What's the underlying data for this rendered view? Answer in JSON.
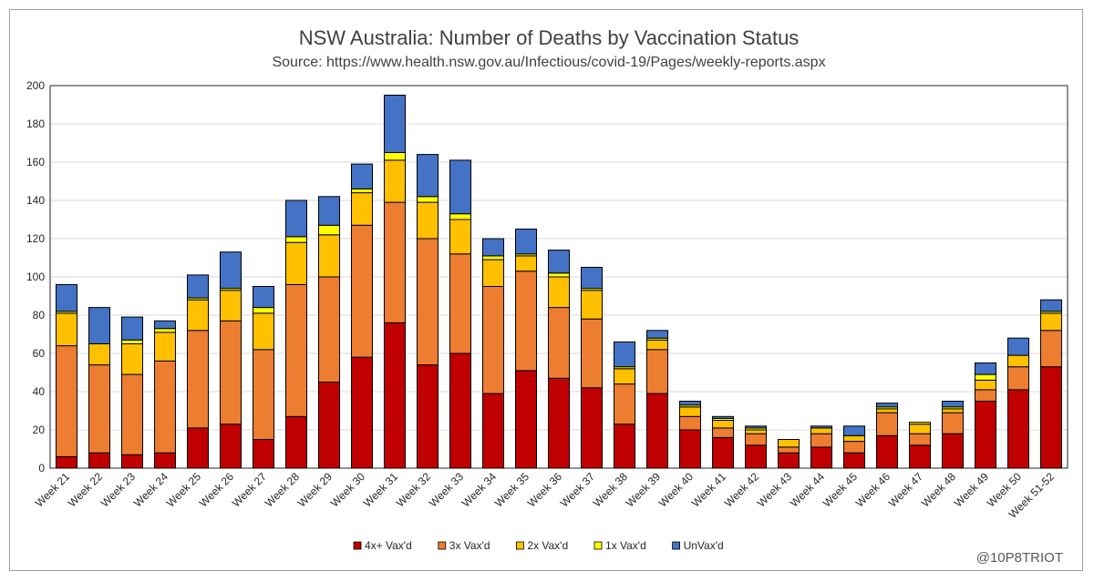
{
  "chart_data": {
    "type": "bar",
    "stacked": true,
    "title": "NSW Australia: Number of Deaths by Vaccination Status",
    "subtitle": "Source: https://www.health.nsw.gov.au/Infectious/covid-19/Pages/weekly-reports.aspx",
    "xlabel": "",
    "ylabel": "",
    "ylim": [
      0,
      200
    ],
    "yticks": [
      0,
      20,
      40,
      60,
      80,
      100,
      120,
      140,
      160,
      180,
      200
    ],
    "grid": true,
    "legend_position": "bottom",
    "categories": [
      "Week 21",
      "Week 22",
      "Week 23",
      "Week 24",
      "Week 25",
      "Week 26",
      "Week 27",
      "Week 28",
      "Week 29",
      "Week 30",
      "Week 31",
      "Week 32",
      "Week 33",
      "Week 34",
      "Week 35",
      "Week 36",
      "Week 37",
      "Week 38",
      "Week 39",
      "Week 40",
      "Week 41",
      "Week 42",
      "Week 43",
      "Week 44",
      "Week 45",
      "Week 46",
      "Week 47",
      "Week 48",
      "Week 49",
      "Week 50",
      "Week 51-52"
    ],
    "series": [
      {
        "name": "4x+ Vax'd",
        "color": "#c00000",
        "values": [
          6,
          8,
          7,
          8,
          21,
          23,
          15,
          27,
          45,
          58,
          76,
          54,
          60,
          39,
          51,
          47,
          42,
          23,
          39,
          20,
          16,
          12,
          8,
          11,
          8,
          17,
          12,
          18,
          35,
          41,
          53
        ]
      },
      {
        "name": "3x Vax'd",
        "color": "#ed7d31",
        "values": [
          58,
          46,
          42,
          48,
          51,
          54,
          47,
          69,
          55,
          69,
          63,
          66,
          52,
          56,
          52,
          37,
          36,
          21,
          23,
          7,
          5,
          6,
          3,
          7,
          6,
          12,
          6,
          11,
          6,
          12,
          19
        ]
      },
      {
        "name": "2x Vax'd",
        "color": "#ffc000",
        "values": [
          17,
          11,
          16,
          15,
          16,
          16,
          19,
          22,
          22,
          17,
          22,
          19,
          18,
          14,
          8,
          16,
          15,
          8,
          5,
          5,
          4,
          2,
          4,
          3,
          3,
          2,
          5,
          2,
          5,
          6,
          9
        ]
      },
      {
        "name": "1x Vax'd",
        "color": "#ffff00",
        "values": [
          1,
          0,
          2,
          2,
          1,
          1,
          3,
          3,
          5,
          2,
          4,
          3,
          3,
          2,
          1,
          2,
          1,
          1,
          1,
          1,
          1,
          1,
          0,
          0,
          0,
          1,
          1,
          1,
          3,
          0,
          1
        ]
      },
      {
        "name": "UnVax'd",
        "color": "#4472c4",
        "values": [
          14,
          19,
          12,
          4,
          12,
          19,
          11,
          19,
          15,
          13,
          30,
          22,
          28,
          9,
          13,
          12,
          11,
          13,
          4,
          2,
          1,
          1,
          0,
          1,
          5,
          2,
          0,
          3,
          6,
          9,
          6
        ]
      }
    ]
  },
  "watermark": "@10P8TRIOT"
}
